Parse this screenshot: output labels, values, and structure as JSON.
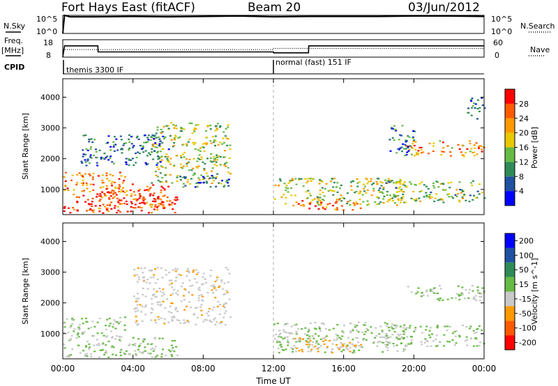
{
  "header": {
    "station": "Fort Hays East (fitACF)",
    "beam": "Beam 20",
    "date": "03/Jun/2012"
  },
  "left_labels": {
    "nsky": "N.Sky",
    "freq_top": "Freq.",
    "freq_unit": "[MHz]",
    "cpid": "CPID"
  },
  "right_labels": {
    "nsearch": "N.Search",
    "nave": "Nave"
  },
  "noise_panel": {
    "left_ticks": [
      "10^5",
      "10^0"
    ],
    "right_ticks": [
      "10^5",
      "10^0"
    ]
  },
  "freq_panel": {
    "left_ticks": [
      "18",
      "8"
    ],
    "right_ticks": [
      "60",
      "0"
    ]
  },
  "cpid_panel": {
    "modes": [
      "themis 3300 IF",
      "normal (fast) 151 IF"
    ]
  },
  "colors": {
    "power": [
      "#0000ff",
      "#2050a0",
      "#2e8b57",
      "#66bb44",
      "#e8c800",
      "#ff9900",
      "#ff5a00",
      "#ff0000"
    ],
    "velocity": [
      "#ff0000",
      "#ff5a00",
      "#ff9900",
      "#c8c8c8",
      "#66bb44",
      "#2e8b57",
      "#2050a0",
      "#0000ff"
    ]
  },
  "chart_data": [
    {
      "type": "line",
      "panel": "noise",
      "series": [
        {
          "name": "N.Sky",
          "x": [
            0,
            0.1,
            0.4,
            2,
            4,
            6,
            8,
            10,
            12,
            14,
            16,
            18,
            20,
            22,
            24
          ],
          "y": [
            0,
            5,
            4.6,
            4.6,
            4.7,
            4.6,
            4.7,
            4.8,
            4.6,
            4.7,
            4.7,
            4.7,
            4.8,
            4.8,
            4.7
          ]
        }
      ],
      "ylim": [
        0,
        5
      ]
    },
    {
      "type": "line",
      "panel": "frequency",
      "series": [
        {
          "name": "Freq.",
          "x": [
            0,
            0.1,
            2,
            2.01,
            12,
            12.01,
            14,
            14.01,
            24
          ],
          "y": [
            8,
            14.5,
            14.5,
            11,
            11,
            10.5,
            10.5,
            14.5,
            14.5
          ]
        },
        {
          "name": "Nave",
          "x": [
            0,
            12,
            12.01,
            24
          ],
          "y": [
            26,
            26,
            30,
            30
          ]
        }
      ],
      "ylim": [
        8,
        18
      ],
      "y2lim": [
        0,
        60
      ]
    },
    {
      "type": "scatter",
      "panel": "power",
      "ylabel": "Slant Range [km]",
      "colorbar_label": "Power [dB]",
      "colorbar_ticks": [
        "28",
        "24",
        "20",
        "16",
        "12",
        "8",
        "4"
      ],
      "x_ticks": [
        "00:00",
        "04:00",
        "08:00",
        "12:00",
        "16:00",
        "20:00",
        "00:00"
      ],
      "y_ticks": [
        "1000",
        "2000",
        "3000",
        "4000"
      ],
      "xlim": [
        0,
        24
      ],
      "ylim": [
        180,
        4600
      ],
      "regions": [
        {
          "x0": 0,
          "x1": 6.5,
          "y0": 250,
          "y1": 900,
          "value": 28
        },
        {
          "x0": 0,
          "x1": 3.5,
          "y0": 900,
          "y1": 1600,
          "value": 24
        },
        {
          "x0": 2,
          "x1": 6,
          "y0": 400,
          "y1": 1200,
          "value": 26
        },
        {
          "x0": 5,
          "x1": 9.5,
          "y0": 1200,
          "y1": 3200,
          "value": 16
        },
        {
          "x0": 6.5,
          "x1": 9.5,
          "y0": 1100,
          "y1": 1500,
          "value": 8
        },
        {
          "x0": 1,
          "x1": 6,
          "y0": 1800,
          "y1": 2800,
          "value": 8
        },
        {
          "x0": 12,
          "x1": 19.5,
          "y0": 500,
          "y1": 1400,
          "value": 16
        },
        {
          "x0": 13,
          "x1": 17,
          "y0": 350,
          "y1": 700,
          "value": 26
        },
        {
          "x0": 18,
          "x1": 24,
          "y0": 600,
          "y1": 1300,
          "value": 14
        },
        {
          "x0": 19.5,
          "x1": 24,
          "y0": 2100,
          "y1": 2600,
          "value": 22
        },
        {
          "x0": 18.5,
          "x1": 20,
          "y0": 2100,
          "y1": 3100,
          "value": 8
        },
        {
          "x0": 23,
          "x1": 24,
          "y0": 3300,
          "y1": 4000,
          "value": 8
        }
      ]
    },
    {
      "type": "scatter",
      "panel": "velocity",
      "xlabel": "Time UT",
      "ylabel": "Slant Range [km]",
      "colorbar_label": "Velocity [m s^-1]",
      "colorbar_ticks": [
        "200",
        "100",
        "50",
        "15",
        "-15",
        "-50",
        "-100",
        "-200"
      ],
      "x_ticks": [
        "00:00",
        "04:00",
        "08:00",
        "12:00",
        "16:00",
        "20:00",
        "00:00"
      ],
      "y_ticks": [
        "1000",
        "2000",
        "3000",
        "4000"
      ],
      "xlim": [
        0,
        24
      ],
      "ylim": [
        180,
        4600
      ],
      "regions": [
        {
          "x0": 0,
          "x1": 6.5,
          "y0": 250,
          "y1": 900,
          "value": 0
        },
        {
          "x0": 0,
          "x1": 3.5,
          "y0": 900,
          "y1": 1600,
          "value": 0
        },
        {
          "x0": 4,
          "x1": 9.5,
          "y0": 1300,
          "y1": 3200,
          "value": -40
        },
        {
          "x0": 12,
          "x1": 19.5,
          "y0": 400,
          "y1": 1400,
          "value": 0
        },
        {
          "x0": 18,
          "x1": 24,
          "y0": 600,
          "y1": 1300,
          "value": 0
        },
        {
          "x0": 19.5,
          "x1": 24,
          "y0": 2100,
          "y1": 2600,
          "value": 0
        },
        {
          "x0": 13,
          "x1": 17,
          "y0": 400,
          "y1": 900,
          "value": -60
        }
      ]
    }
  ]
}
